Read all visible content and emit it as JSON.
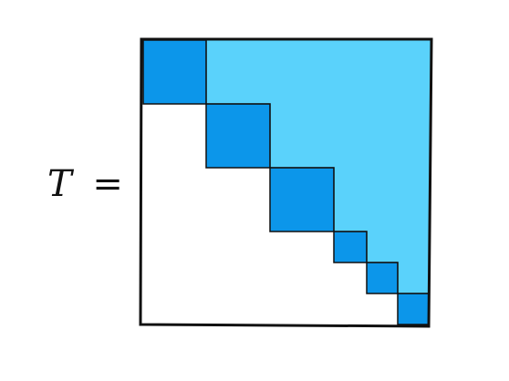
{
  "equation": {
    "variable": "T",
    "relation": "="
  },
  "matrix": {
    "description_kind": "block upper triangular",
    "diagonal_blocks": 6,
    "colors": {
      "diagonal_block": "#0c96ea",
      "upper_region": "#5ad2fb",
      "lower_region": "#ffffff",
      "border": "#111111"
    }
  }
}
